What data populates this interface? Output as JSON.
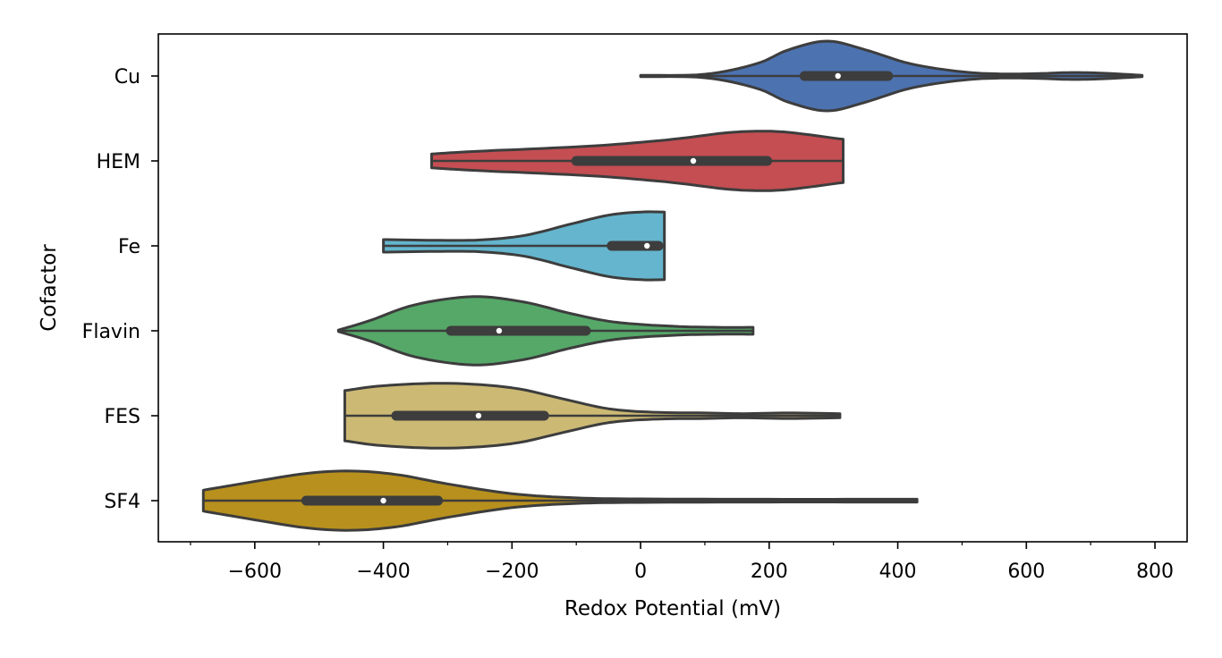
{
  "chart_data": {
    "type": "violin",
    "orientation": "horizontal",
    "xlabel": "Redox Potential (mV)",
    "ylabel": "Cofactor",
    "xlim": [
      -750,
      850
    ],
    "xticks": [
      -600,
      -400,
      -200,
      0,
      200,
      400,
      600,
      800
    ],
    "xtick_labels": [
      "−600",
      "−400",
      "−200",
      "0",
      "200",
      "400",
      "600",
      "800"
    ],
    "grid": false,
    "series": [
      {
        "name": "Cu",
        "color": "#4c72b0",
        "min": 0,
        "max": 780,
        "q1": 255,
        "q3": 385,
        "median": 307,
        "density": [
          [
            0,
            0.02
          ],
          [
            100,
            0.05
          ],
          [
            180,
            0.35
          ],
          [
            230,
            0.75
          ],
          [
            290,
            1.0
          ],
          [
            350,
            0.75
          ],
          [
            420,
            0.35
          ],
          [
            500,
            0.12
          ],
          [
            560,
            0.06
          ],
          [
            620,
            0.07
          ],
          [
            670,
            0.1
          ],
          [
            720,
            0.08
          ],
          [
            780,
            0.02
          ]
        ]
      },
      {
        "name": "HEM",
        "color": "#c44e52",
        "min": -325,
        "max": 315,
        "q1": -100,
        "q3": 197,
        "median": 82,
        "density": [
          [
            -325,
            0.2
          ],
          [
            -250,
            0.28
          ],
          [
            -150,
            0.36
          ],
          [
            -50,
            0.46
          ],
          [
            50,
            0.62
          ],
          [
            130,
            0.8
          ],
          [
            180,
            0.85
          ],
          [
            230,
            0.82
          ],
          [
            315,
            0.62
          ]
        ]
      },
      {
        "name": "Fe",
        "color": "#64b5cd",
        "min": -400,
        "max": 37,
        "q1": -45,
        "q3": 28,
        "median": 10,
        "density": [
          [
            -400,
            0.18
          ],
          [
            -320,
            0.16
          ],
          [
            -250,
            0.17
          ],
          [
            -180,
            0.3
          ],
          [
            -110,
            0.62
          ],
          [
            -50,
            0.88
          ],
          [
            0,
            0.97
          ],
          [
            37,
            0.97
          ]
        ]
      },
      {
        "name": "Flavin",
        "color": "#55a868",
        "min": -470,
        "max": 175,
        "q1": -295,
        "q3": -85,
        "median": -220,
        "density": [
          [
            -470,
            0.02
          ],
          [
            -420,
            0.3
          ],
          [
            -350,
            0.75
          ],
          [
            -260,
            0.98
          ],
          [
            -180,
            0.82
          ],
          [
            -110,
            0.5
          ],
          [
            -40,
            0.25
          ],
          [
            50,
            0.13
          ],
          [
            120,
            0.1
          ],
          [
            175,
            0.1
          ]
        ]
      },
      {
        "name": "FES",
        "color": "#ccb974",
        "min": -460,
        "max": 310,
        "q1": -380,
        "q3": -150,
        "median": -252,
        "density": [
          [
            -460,
            0.72
          ],
          [
            -400,
            0.86
          ],
          [
            -300,
            0.93
          ],
          [
            -200,
            0.8
          ],
          [
            -120,
            0.48
          ],
          [
            -50,
            0.2
          ],
          [
            20,
            0.1
          ],
          [
            100,
            0.08
          ],
          [
            160,
            0.06
          ],
          [
            230,
            0.08
          ],
          [
            310,
            0.06
          ]
        ]
      },
      {
        "name": "SF4",
        "color": "#b8901d",
        "min": -680,
        "max": 430,
        "q1": -520,
        "q3": -315,
        "median": -400,
        "density": [
          [
            -680,
            0.3
          ],
          [
            -600,
            0.55
          ],
          [
            -520,
            0.78
          ],
          [
            -450,
            0.85
          ],
          [
            -380,
            0.75
          ],
          [
            -300,
            0.48
          ],
          [
            -200,
            0.2
          ],
          [
            -100,
            0.08
          ],
          [
            0,
            0.05
          ],
          [
            200,
            0.04
          ],
          [
            350,
            0.04
          ],
          [
            430,
            0.04
          ]
        ]
      }
    ]
  }
}
